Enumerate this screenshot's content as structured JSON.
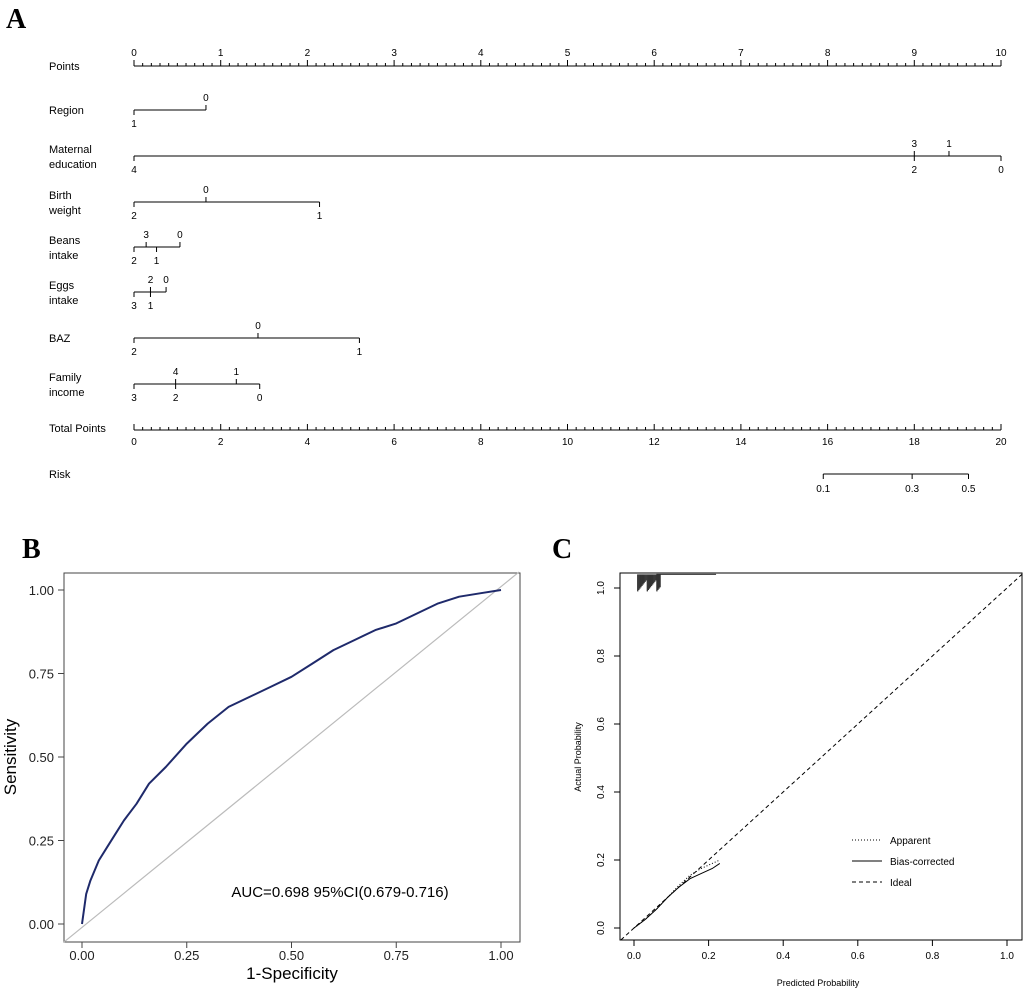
{
  "chart_data": [
    {
      "panel": "A",
      "type": "nomogram",
      "points_scale": {
        "label": "Points",
        "min": 0,
        "max": 10,
        "ticks": [
          0,
          1,
          2,
          3,
          4,
          5,
          6,
          7,
          8,
          9,
          10
        ]
      },
      "variables": [
        {
          "label": [
            "Region"
          ],
          "above": [
            {
              "t": "0",
              "v": 0.83
            }
          ],
          "below": [
            {
              "t": "1",
              "v": 0
            }
          ],
          "line": [
            0,
            0.83
          ]
        },
        {
          "label": [
            "Maternal",
            "education"
          ],
          "above": [
            {
              "t": "3",
              "v": 9.0
            },
            {
              "t": "1",
              "v": 9.4
            }
          ],
          "below": [
            {
              "t": "4",
              "v": 0
            },
            {
              "t": "2",
              "v": 9.0
            },
            {
              "t": "0",
              "v": 10.0
            }
          ],
          "line": [
            0,
            10
          ]
        },
        {
          "label": [
            "Birth",
            "weight"
          ],
          "above": [
            {
              "t": "0",
              "v": 0.83
            }
          ],
          "below": [
            {
              "t": "2",
              "v": 0
            },
            {
              "t": "1",
              "v": 2.14
            }
          ],
          "line": [
            0,
            2.14
          ]
        },
        {
          "label": [
            "Beans",
            "intake"
          ],
          "above": [
            {
              "t": "3",
              "v": 0.14
            },
            {
              "t": "0",
              "v": 0.53
            }
          ],
          "below": [
            {
              "t": "2",
              "v": 0
            },
            {
              "t": "1",
              "v": 0.26
            }
          ],
          "line": [
            0,
            0.53
          ]
        },
        {
          "label": [
            "Eggs",
            "intake"
          ],
          "above": [
            {
              "t": "2",
              "v": 0.19
            },
            {
              "t": "0",
              "v": 0.37
            }
          ],
          "below": [
            {
              "t": "3",
              "v": 0
            },
            {
              "t": "1",
              "v": 0.19
            }
          ],
          "line": [
            0,
            0.37
          ]
        },
        {
          "label": [
            "BAZ"
          ],
          "above": [
            {
              "t": "0",
              "v": 1.43
            }
          ],
          "below": [
            {
              "t": "2",
              "v": 0
            },
            {
              "t": "1",
              "v": 2.6
            }
          ],
          "line": [
            0,
            2.6
          ]
        },
        {
          "label": [
            "Family",
            "income"
          ],
          "above": [
            {
              "t": "4",
              "v": 0.48
            },
            {
              "t": "1",
              "v": 1.18
            }
          ],
          "below": [
            {
              "t": "3",
              "v": 0
            },
            {
              "t": "2",
              "v": 0.48
            },
            {
              "t": "0",
              "v": 1.45
            }
          ],
          "line": [
            0,
            1.45
          ]
        }
      ],
      "total_points_scale": {
        "label": "Total Points",
        "min": 0,
        "max": 20,
        "ticks": [
          0,
          2,
          4,
          6,
          8,
          10,
          12,
          14,
          16,
          18,
          20
        ]
      },
      "risk_scale": {
        "label": "Risk",
        "ticks": [
          {
            "t": "0.1",
            "v": 15.9
          },
          {
            "t": "0.3",
            "v": 17.95
          },
          {
            "t": "0.5",
            "v": 19.25
          }
        ],
        "line": [
          15.9,
          19.25
        ]
      }
    },
    {
      "panel": "B",
      "type": "line",
      "title": "",
      "xlabel": "1-Specificity",
      "ylabel": "Sensitivity",
      "xlim": [
        0,
        1
      ],
      "ylim": [
        0,
        1
      ],
      "ticks": [
        "0.00",
        "0.25",
        "0.50",
        "0.75",
        "1.00"
      ],
      "annotation": "AUC=0.698 95%CI(0.679-0.716)",
      "series": [
        {
          "name": "ROC",
          "color": "#1f2a6b",
          "x": [
            0,
            0.01,
            0.02,
            0.04,
            0.06,
            0.08,
            0.1,
            0.13,
            0.16,
            0.2,
            0.25,
            0.3,
            0.35,
            0.4,
            0.45,
            0.5,
            0.55,
            0.6,
            0.65,
            0.7,
            0.75,
            0.8,
            0.85,
            0.9,
            0.95,
            1.0
          ],
          "y": [
            0,
            0.09,
            0.13,
            0.19,
            0.23,
            0.27,
            0.31,
            0.36,
            0.42,
            0.47,
            0.54,
            0.6,
            0.65,
            0.68,
            0.71,
            0.74,
            0.78,
            0.82,
            0.85,
            0.88,
            0.9,
            0.93,
            0.96,
            0.98,
            0.99,
            1.0
          ]
        },
        {
          "name": "Reference",
          "color": "#bbbbbb",
          "x": [
            0,
            1
          ],
          "y": [
            0,
            1
          ]
        }
      ]
    },
    {
      "panel": "C",
      "type": "line",
      "title": "",
      "xlabel": "Predicted Probability",
      "ylabel": "Actual Probability",
      "xlim": [
        0,
        1
      ],
      "ylim": [
        0,
        1
      ],
      "ticks": [
        "0.0",
        "0.2",
        "0.4",
        "0.6",
        "0.8",
        "1.0"
      ],
      "legend": [
        "Apparent",
        "Bias-corrected",
        "Ideal"
      ],
      "series": [
        {
          "name": "Apparent",
          "style": "dotted",
          "x": [
            0.0,
            0.03,
            0.06,
            0.09,
            0.12,
            0.15,
            0.18,
            0.21,
            0.23
          ],
          "y": [
            0.0,
            0.025,
            0.055,
            0.09,
            0.125,
            0.155,
            0.175,
            0.19,
            0.2
          ]
        },
        {
          "name": "Bias-corrected",
          "style": "solid",
          "x": [
            0.0,
            0.03,
            0.06,
            0.09,
            0.12,
            0.15,
            0.18,
            0.21,
            0.23
          ],
          "y": [
            0.0,
            0.025,
            0.055,
            0.09,
            0.12,
            0.145,
            0.16,
            0.175,
            0.19
          ]
        },
        {
          "name": "Ideal",
          "style": "dashed",
          "x": [
            0,
            1
          ],
          "y": [
            0,
            1
          ]
        }
      ],
      "rug_top": {
        "from": 0.01,
        "to": 0.07,
        "y_top": 1.04,
        "y_bottom": 0.99
      }
    }
  ]
}
